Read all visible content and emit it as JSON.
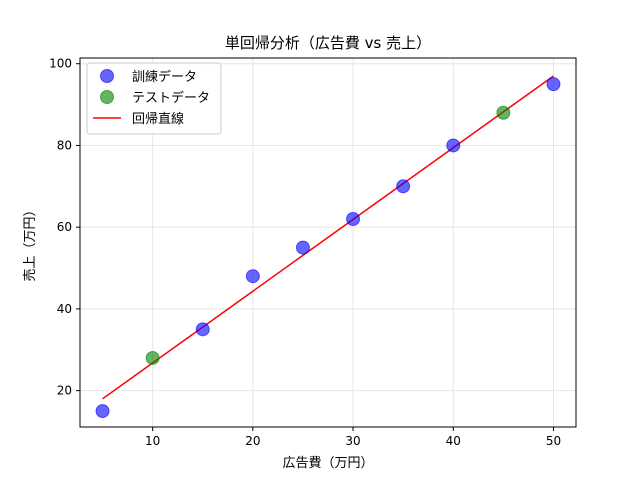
{
  "chart_data": {
    "type": "scatter",
    "title": "単回帰分析（広告費 vs 売上）",
    "xlabel": "広告費（万円）",
    "ylabel": "売上（万円）",
    "xlim": [
      2.75,
      52.25
    ],
    "ylim": [
      11.1,
      101.4
    ],
    "xticks": [
      10,
      20,
      30,
      40,
      50
    ],
    "yticks": [
      20,
      40,
      60,
      80,
      100
    ],
    "grid": true,
    "legend_position": "top-left",
    "series": [
      {
        "name": "訓練データ",
        "kind": "scatter",
        "color": "#0000ff",
        "points": [
          [
            5,
            15
          ],
          [
            15,
            35
          ],
          [
            20,
            48
          ],
          [
            25,
            55
          ],
          [
            30,
            62
          ],
          [
            35,
            70
          ],
          [
            40,
            80
          ],
          [
            50,
            95
          ]
        ]
      },
      {
        "name": "テストデータ",
        "kind": "scatter",
        "color": "#008000",
        "points": [
          [
            10,
            28
          ],
          [
            45,
            88
          ]
        ]
      },
      {
        "name": "回帰直線",
        "kind": "line",
        "color": "#ff0000",
        "points": [
          [
            5,
            18
          ],
          [
            50,
            97
          ]
        ]
      }
    ]
  }
}
